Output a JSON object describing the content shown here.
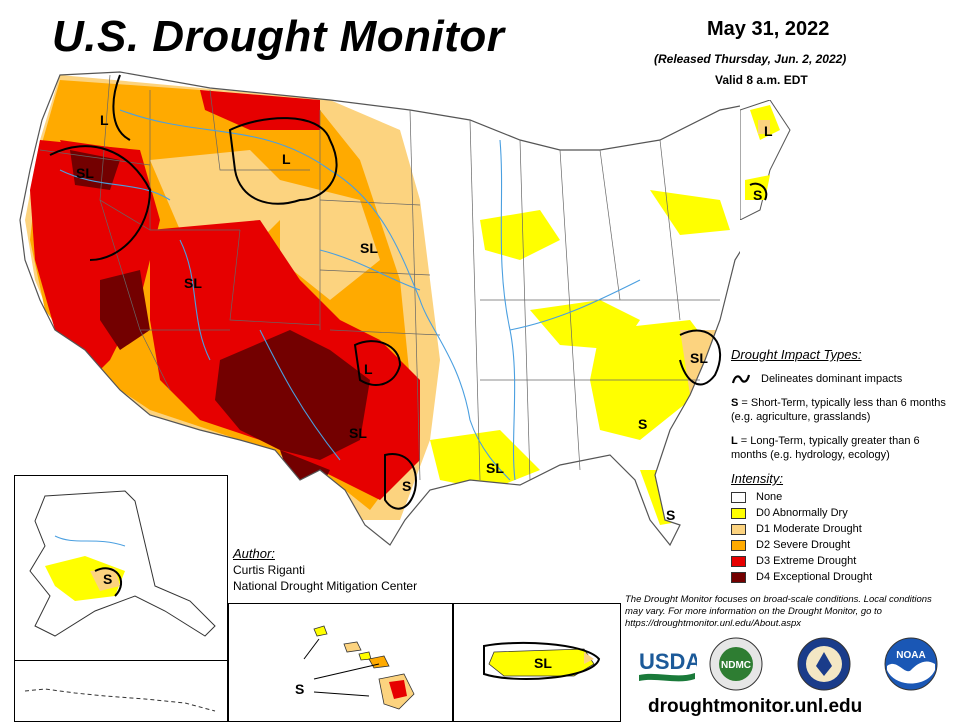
{
  "header": {
    "title": "U.S. Drought Monitor",
    "date": "May 31, 2022",
    "released": "(Released Thursday, Jun. 2, 2022)",
    "valid": "Valid 8 a.m. EDT"
  },
  "legend": {
    "impact_title": "Drought Impact Types:",
    "impact_line": "Delineates dominant impacts",
    "short_term_key": "S",
    "short_term_text": " = Short-Term, typically less than 6 months (e.g. agriculture, grasslands)",
    "long_term_key": "L",
    "long_term_text": " = Long-Term, typically greater than 6 months (e.g. hydrology, ecology)",
    "intensity_title": "Intensity:",
    "categories": [
      {
        "label": "None",
        "color": "#ffffff"
      },
      {
        "label": "D0 Abnormally Dry",
        "color": "#ffff00"
      },
      {
        "label": "D1 Moderate Drought",
        "color": "#fcd37f"
      },
      {
        "label": "D2 Severe Drought",
        "color": "#ffaa00"
      },
      {
        "label": "D3 Extreme Drought",
        "color": "#e60000"
      },
      {
        "label": "D4 Exceptional Drought",
        "color": "#730000"
      }
    ]
  },
  "author": {
    "heading": "Author:",
    "name": "Curtis Riganti",
    "org": "National Drought Mitigation Center"
  },
  "note": "The Drought Monitor focuses on broad-scale conditions. Local conditions may vary. For more information on the Drought Monitor, go to https://droughtmonitor.unl.edu/About.aspx",
  "map_labels": {
    "nw": "L",
    "nw_sl": "SL",
    "mt": "L",
    "west_sl": "SL",
    "plains_sl": "SL",
    "sw_l": "L",
    "tx_sl": "SL",
    "tx_s": "S",
    "gulf_sl": "SL",
    "ne_l": "L",
    "ne_s": "S",
    "se_sl": "SL",
    "se_s": "S",
    "fl_s": "S",
    "ak_s": "S",
    "hi_s": "S",
    "pr_sl": "SL"
  },
  "logos": {
    "usda": "USDA",
    "ndmc": "NDMC",
    "noaa": "NOAA",
    "doc": "DOC"
  },
  "website": "droughtmonitor.unl.edu",
  "colors": {
    "none": "#ffffff",
    "d0": "#ffff00",
    "d1": "#fcd37f",
    "d2": "#ffaa00",
    "d3": "#e60000",
    "d4": "#730000",
    "water": "#4a9fe0"
  }
}
